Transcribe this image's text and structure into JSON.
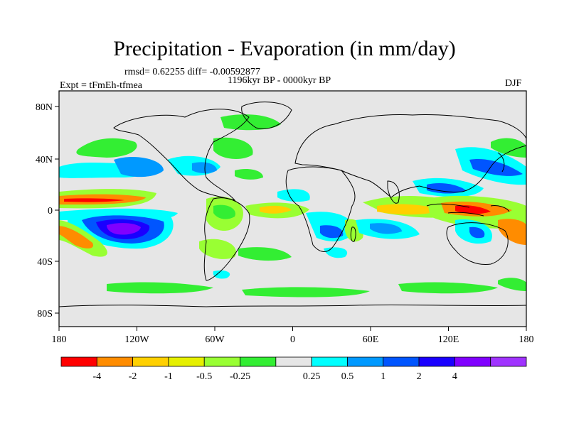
{
  "title": "Precipitation - Evaporation (in mm/day)",
  "stats": "rmsd= 0.62255  diff= -0.00592877",
  "experiment": "Expt = tFmEh-tfmea",
  "period": "1196kyr BP - 0000kyr BP",
  "season": "DJF",
  "lat_ticks": [
    "80N",
    "40N",
    "0",
    "40S",
    "80S"
  ],
  "lon_ticks": [
    "180",
    "120W",
    "60W",
    "0",
    "60E",
    "120E",
    "180"
  ],
  "colorbar": {
    "colors": [
      "#ff0000",
      "#ff8c00",
      "#ffd000",
      "#e6f000",
      "#99ff33",
      "#33ee33",
      "#e6e6e6",
      "#00ffff",
      "#0099ff",
      "#0055ff",
      "#1a00ff",
      "#8000ff",
      "#a033ff"
    ],
    "labels": [
      "-4",
      "-2",
      "-1",
      "-0.5",
      "-0.25",
      "0.25",
      "0.5",
      "1",
      "2",
      "4"
    ]
  },
  "colors": {
    "land_ocean_bg": "#e6e6e6",
    "coast": "#000000"
  }
}
